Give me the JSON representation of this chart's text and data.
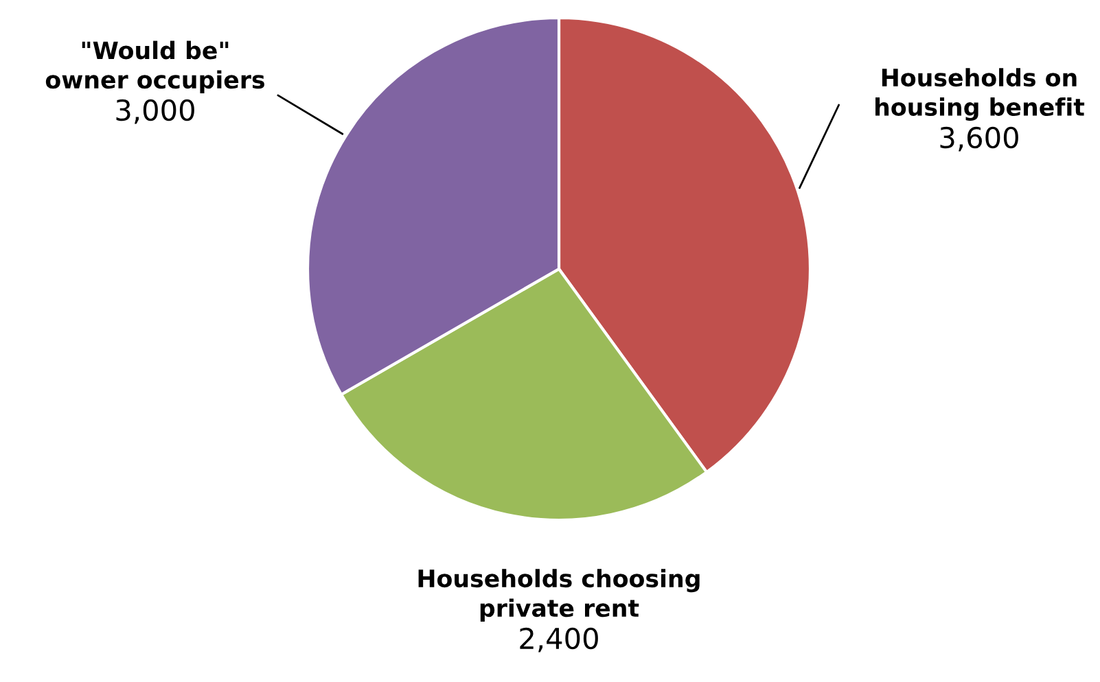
{
  "chart_data": {
    "type": "pie",
    "categories": [
      "Households on\nhousing benefit",
      "Households choosing\nprivate rent",
      "\"Would be\"\nowner occupiers"
    ],
    "values": [
      3600,
      2400,
      3000
    ],
    "value_labels": [
      "3,600",
      "2,400",
      "3,000"
    ],
    "colors": [
      "#c0504d",
      "#9bbb59",
      "#8064a2"
    ]
  }
}
